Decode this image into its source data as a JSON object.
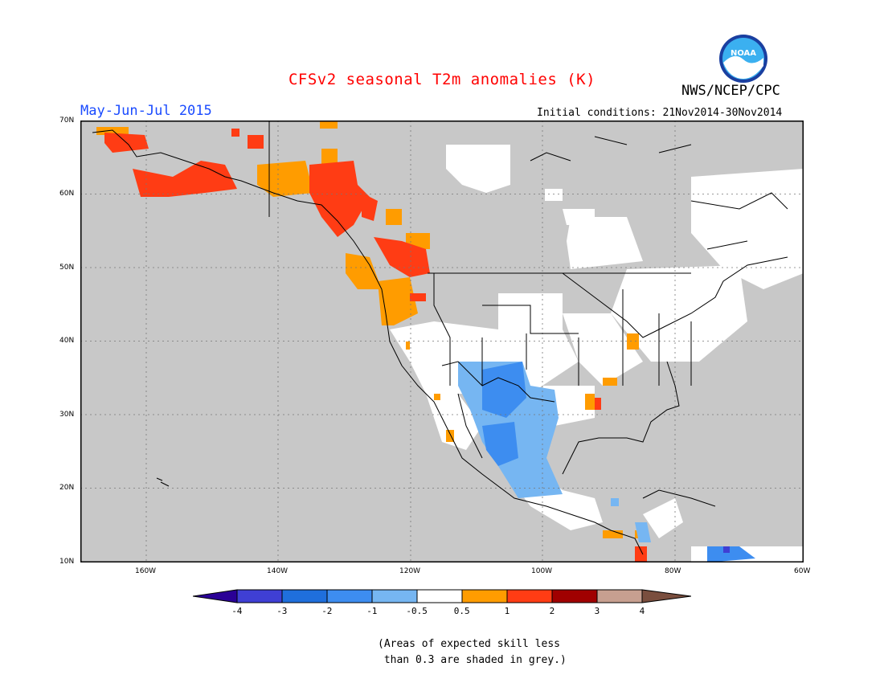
{
  "title": "CFSv2 seasonal T2m anomalies (K)",
  "agency": "NWS/NCEP/CPC",
  "logo_text": "NOAA",
  "period": "May-Jun-Jul 2015",
  "initial_conditions": "Initial conditions: 21Nov2014-30Nov2014",
  "lat_labels": [
    "70N",
    "60N",
    "50N",
    "40N",
    "30N",
    "20N",
    "10N"
  ],
  "lon_labels": [
    "160W",
    "140W",
    "120W",
    "100W",
    "80W",
    "60W"
  ],
  "colorbar": {
    "labels": [
      "-4",
      "-3",
      "-2",
      "-1",
      "-0.5",
      "0.5",
      "1",
      "2",
      "3",
      "4"
    ],
    "colors": [
      "#2a0096",
      "#3f3fd4",
      "#1f6fdc",
      "#3d8df0",
      "#76b6f2",
      "#ffffff",
      "#ff9c00",
      "#ff3c14",
      "#a00000",
      "#c79f90",
      "#7a4e3e"
    ]
  },
  "colors": {
    "ocean_grey": "#c8c8c8",
    "title_red": "#ff0000",
    "period_blue": "#1a4bff"
  },
  "note": "(Areas of expected skill less\n than 0.3 are shaded in grey.)"
}
